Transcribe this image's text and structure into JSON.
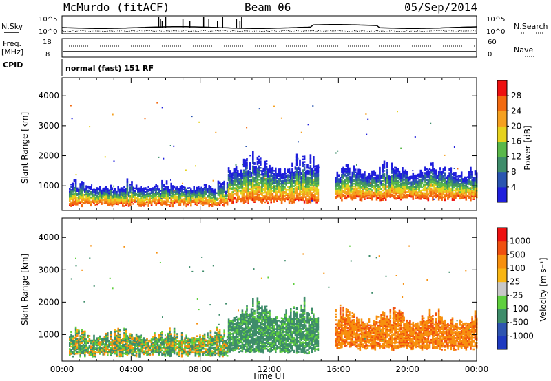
{
  "header": {
    "station": "McMurdo (fitACF)",
    "beam": "Beam 06",
    "date": "05/Sep/2014"
  },
  "side_labels": {
    "nsky": "N.Sky",
    "nsearch": "N.Search",
    "freq": "Freq.",
    "freq_unit": "[MHz]",
    "nave": "Nave",
    "cpid": "CPID",
    "cpid_value": "normal (fast) 151 RF"
  },
  "noise_axis": {
    "left_top": "10^5",
    "left_bot": "10^0",
    "right_top": "10^5",
    "right_bot": "10^0"
  },
  "freq_axis": {
    "left_top": "18",
    "left_bot": "8",
    "right_top": "60",
    "right_bot": "0"
  },
  "colors": {
    "power": [
      "#1f1fdc",
      "#2a55b0",
      "#3e8c6a",
      "#5ab84a",
      "#e6d21e",
      "#f5a020",
      "#f26a10",
      "#ee1010"
    ],
    "velocity": [
      "#ee1010",
      "#f05010",
      "#f7900e",
      "#f8b614",
      "#c8c8c8",
      "#5fcf3e",
      "#3e8c6a",
      "#2f55b0",
      "#1f3ac0"
    ]
  },
  "chart_data": [
    {
      "type": "heatmap",
      "title": "Power",
      "ylabel": "Slant Range [km]",
      "y_ticks": [
        "1000",
        "2000",
        "3000",
        "4000"
      ],
      "ylim": [
        180,
        4600
      ],
      "xlim_hours": [
        0,
        24
      ],
      "colorbar": {
        "label": "Power [dB]",
        "ticks": [
          "4",
          "8",
          "12",
          "16",
          "20",
          "24",
          "28"
        ],
        "range": [
          0,
          32
        ]
      },
      "echo_regions": [
        {
          "t0": 0.4,
          "t1": 9.6,
          "r_low": 300,
          "r_high": 1250
        },
        {
          "t0": 9.6,
          "t1": 14.8,
          "r_low": 400,
          "r_high": 2200
        },
        {
          "t0": 15.8,
          "t1": 24.0,
          "r_low": 500,
          "r_high": 1900
        }
      ]
    },
    {
      "type": "heatmap",
      "title": "Velocity",
      "ylabel": "Slant Range [km]",
      "y_ticks": [
        "1000",
        "2000",
        "3000",
        "4000"
      ],
      "ylim": [
        180,
        4600
      ],
      "xlim_hours": [
        0,
        24
      ],
      "xlabel": "Time UT",
      "x_ticks": [
        "00:00",
        "04:00",
        "08:00",
        "12:00",
        "16:00",
        "20:00",
        "00:00"
      ],
      "colorbar": {
        "label": "Velocity [m s⁻¹]",
        "ticks": [
          "1000",
          "500",
          "100",
          "25",
          "-25",
          "-100",
          "-500",
          "-1000"
        ]
      },
      "echo_regions": [
        {
          "t0": 0.4,
          "t1": 9.6,
          "r_low": 300,
          "r_high": 1250
        },
        {
          "t0": 9.6,
          "t1": 14.8,
          "r_low": 400,
          "r_high": 2200
        },
        {
          "t0": 15.8,
          "t1": 24.0,
          "r_low": 500,
          "r_high": 1900
        }
      ]
    }
  ]
}
